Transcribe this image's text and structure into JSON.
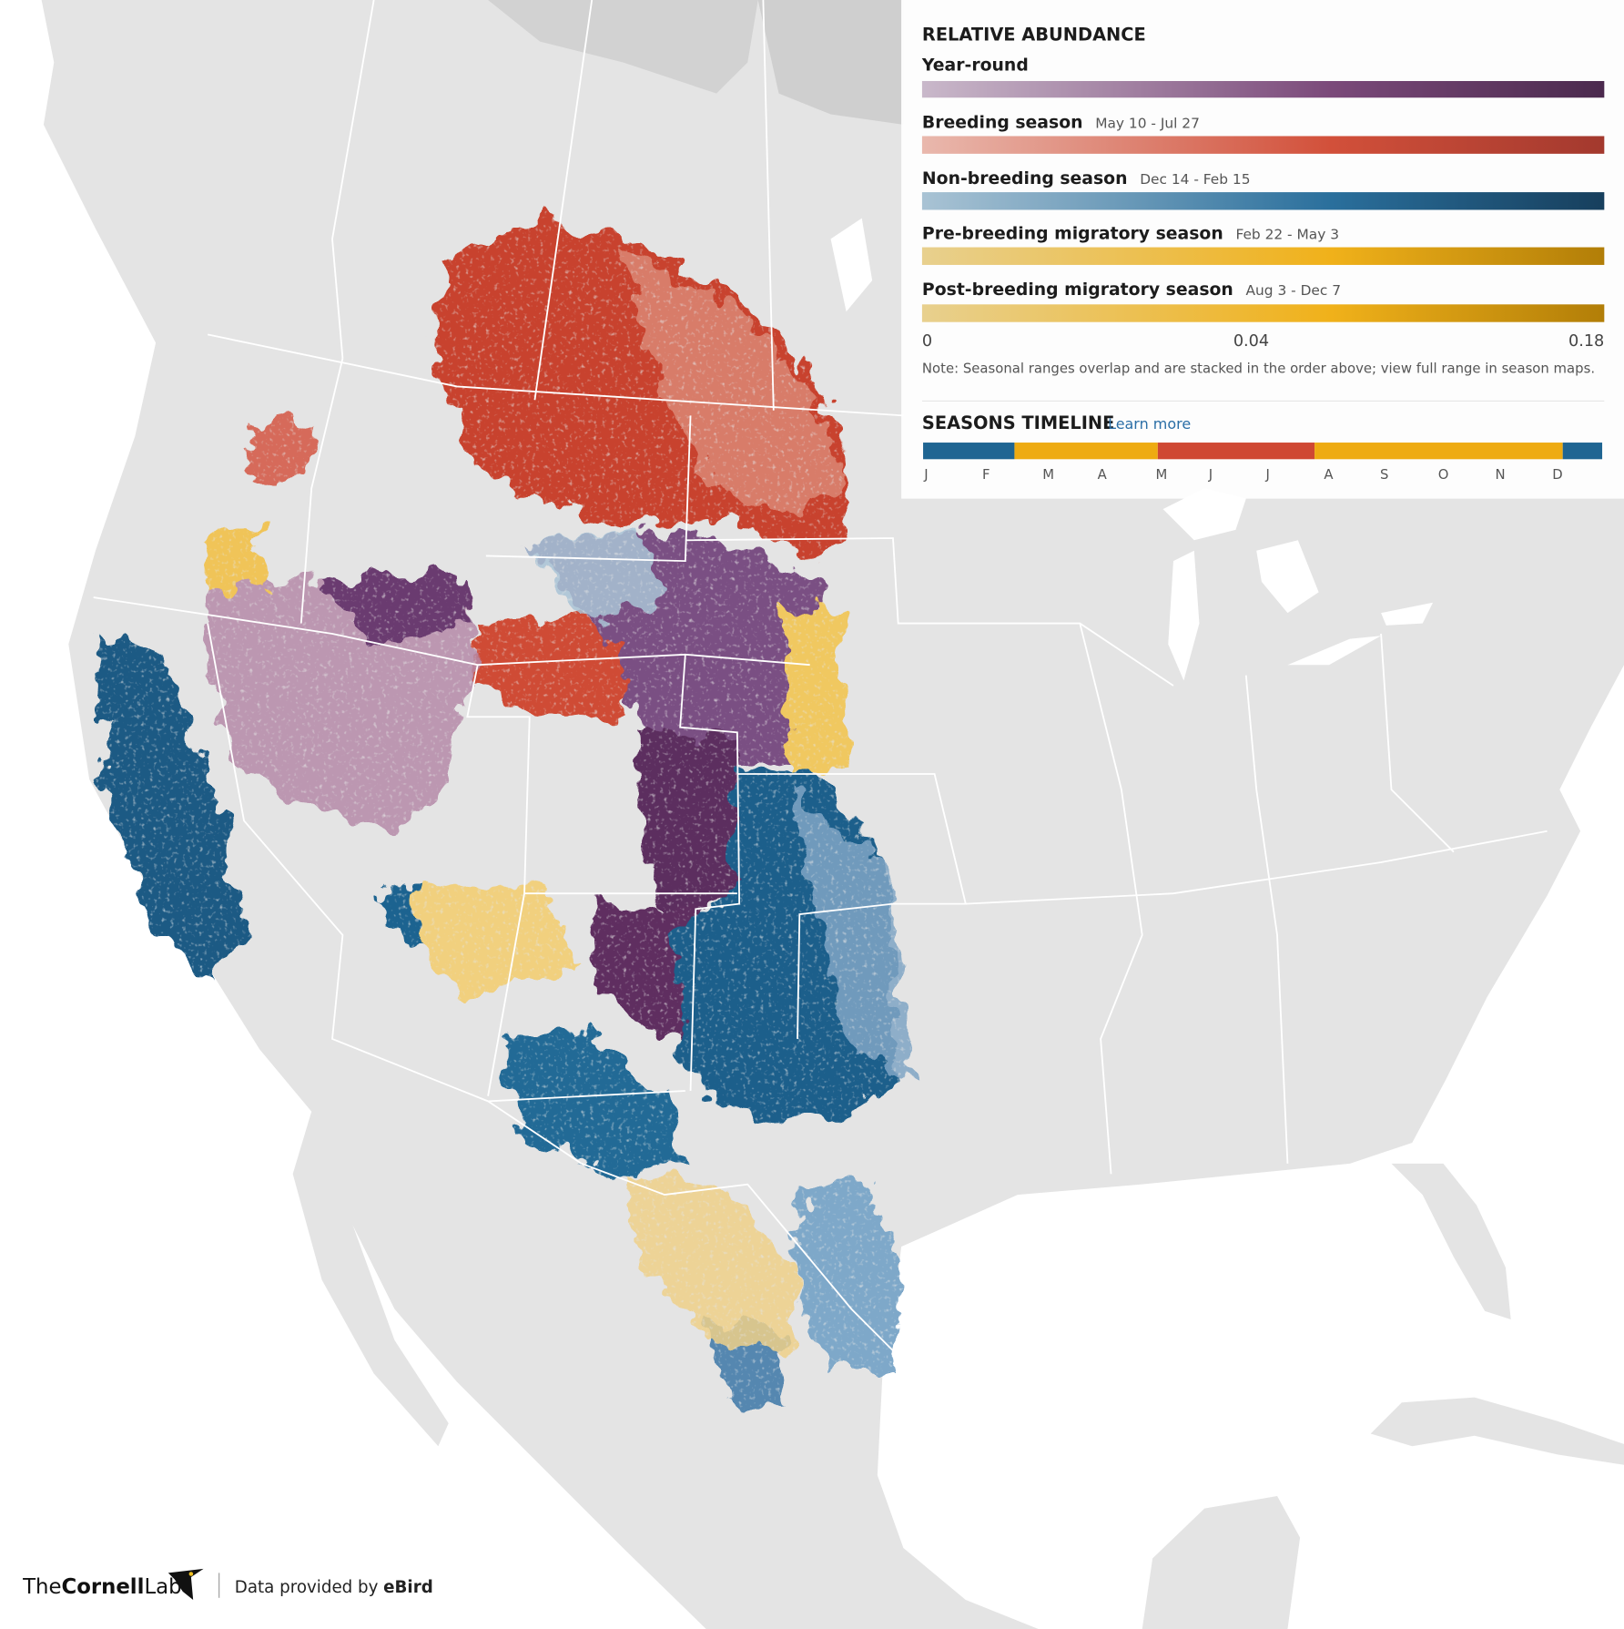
{
  "legend": {
    "title": "RELATIVE ABUNDANCE",
    "seasons": [
      {
        "name": "Year-round"
      },
      {
        "name": "Breeding season",
        "dates": "May 10 - Jul 27"
      },
      {
        "name": "Non-breeding season",
        "dates": "Dec 14 - Feb 15"
      },
      {
        "name": "Pre-breeding migratory season",
        "dates": "Feb 22 - May 3"
      },
      {
        "name": "Post-breeding migratory season",
        "dates": "Aug 3 - Dec 7"
      }
    ],
    "scale": [
      "0",
      "0.04",
      "0.18"
    ],
    "note": "Note: Seasonal ranges overlap and are stacked in the order above; view full range in season maps."
  },
  "timeline": {
    "title": "SEASONS TIMELINE",
    "link": "Learn more",
    "months": [
      "J",
      "F",
      "M",
      "A",
      "M",
      "J",
      "J",
      "A",
      "S",
      "O",
      "N",
      "D"
    ]
  },
  "footer": {
    "logo": [
      "The",
      "Cornell",
      "Lab"
    ],
    "credit": "Data provided by",
    "source": "eBird"
  }
}
